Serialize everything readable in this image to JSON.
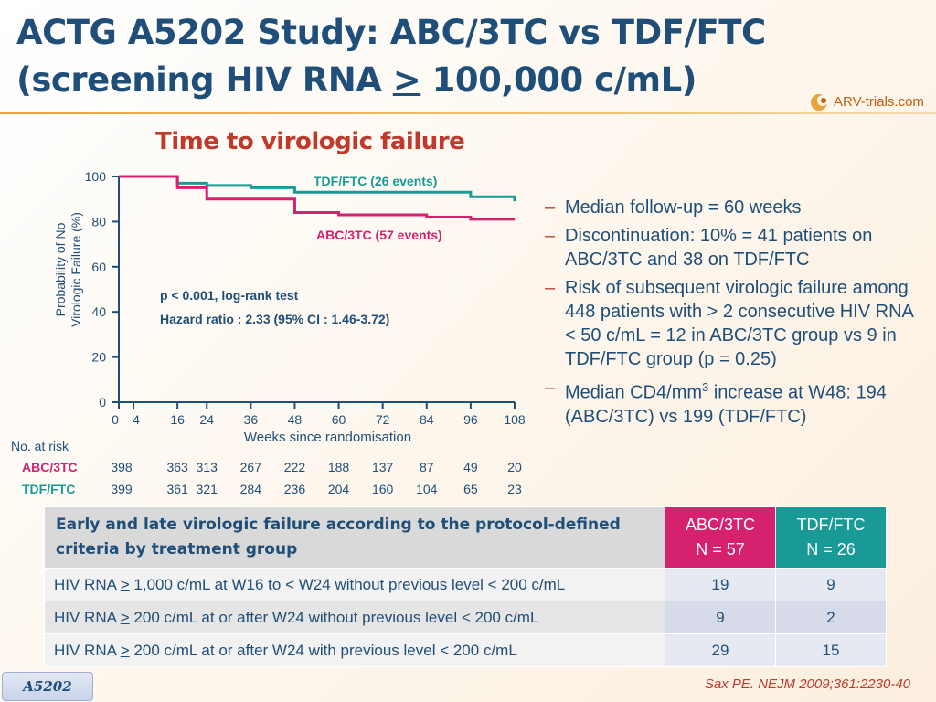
{
  "slide": {
    "title_line1": "ACTG A5202 Study: ABC/3TC vs TDF/FTC",
    "title_line2_pre": "(screening HIV RNA ",
    "title_line2_geq": ">",
    "title_line2_post": " 100,000 c/mL)",
    "logo_text": "ARV-trials.com",
    "chart_title": "Time to virologic failure",
    "study_tag": "A5202",
    "citation": "Sax PE. NEJM 2009;361:2230-40"
  },
  "colors": {
    "abc": "#d6216f",
    "tdf": "#1a9a96",
    "title": "#1f4e79",
    "accent": "#c0392b"
  },
  "chart_data": {
    "type": "line",
    "title": "Time to virologic failure",
    "xlabel": "Weeks since randomisation",
    "ylabel": "Probability of No Virologic Failure (%)",
    "xlim": [
      0,
      108
    ],
    "ylim": [
      0,
      100
    ],
    "x_ticks": [
      0,
      4,
      16,
      24,
      36,
      48,
      60,
      72,
      84,
      96,
      108
    ],
    "y_ticks": [
      0,
      20,
      40,
      60,
      80,
      100
    ],
    "series": [
      {
        "name": "TDF/FTC (26 events)",
        "color": "#1a9a96",
        "x": [
          0,
          16,
          24,
          36,
          48,
          72,
          84,
          96,
          108
        ],
        "y": [
          100,
          97,
          96,
          95,
          93,
          93,
          93,
          91,
          89
        ]
      },
      {
        "name": "ABC/3TC (57 events)",
        "color": "#d6216f",
        "x": [
          0,
          16,
          24,
          48,
          60,
          84,
          96,
          108
        ],
        "y": [
          100,
          95,
          90,
          84,
          83,
          82,
          81,
          81
        ]
      }
    ],
    "annotations": [
      "p < 0.001, log-rank test",
      "Hazard ratio : 2.33 (95% CI : 1.46-3.72)"
    ],
    "risk_table": {
      "title": "No. at risk",
      "weeks": [
        4,
        16,
        24,
        36,
        48,
        60,
        72,
        84,
        96,
        108
      ],
      "rows": [
        {
          "label": "ABC/3TC",
          "values": [
            398,
            363,
            313,
            267,
            222,
            188,
            137,
            87,
            49,
            20
          ]
        },
        {
          "label": "TDF/FTC",
          "values": [
            399,
            361,
            321,
            284,
            236,
            204,
            160,
            104,
            65,
            23
          ]
        }
      ]
    }
  },
  "bullets": [
    "Median follow-up = 60 weeks",
    "Discontinuation: 10% = 41 patients on ABC/3TC and 38 on TDF/FTC",
    "Risk of subsequent virologic failure among 448 patients with > 2 consecutive HIV RNA < 50 c/mL = 12 in ABC/3TC group vs 9 in TDF/FTC group (p = 0.25)",
    {
      "pre": "Median CD4/mm",
      "sup": "3",
      "post": " increase at W48: 194 (ABC/3TC) vs 199 (TDF/FTC)"
    }
  ],
  "table": {
    "header_label": "Early and late virologic failure according to the protocol-defined criteria by treatment group",
    "col_abc_line1": "ABC/3TC",
    "col_abc_line2": "N = 57",
    "col_tdf_line1": "TDF/FTC",
    "col_tdf_line2": "N = 26",
    "rows": [
      {
        "pre": "HIV RNA ",
        "geq": ">",
        "post": " 1,000 c/mL at W16 to < W24 without previous level < 200 c/mL",
        "abc": "19",
        "tdf": "9"
      },
      {
        "pre": "HIV RNA ",
        "geq": ">",
        "post": " 200 c/mL at or after W24 without previous level < 200 c/mL",
        "abc": "9",
        "tdf": "2"
      },
      {
        "pre": "HIV RNA ",
        "geq": ">",
        "post": " 200 c/mL at or after W24 with previous level < 200 c/mL",
        "abc": "29",
        "tdf": "15"
      }
    ]
  }
}
